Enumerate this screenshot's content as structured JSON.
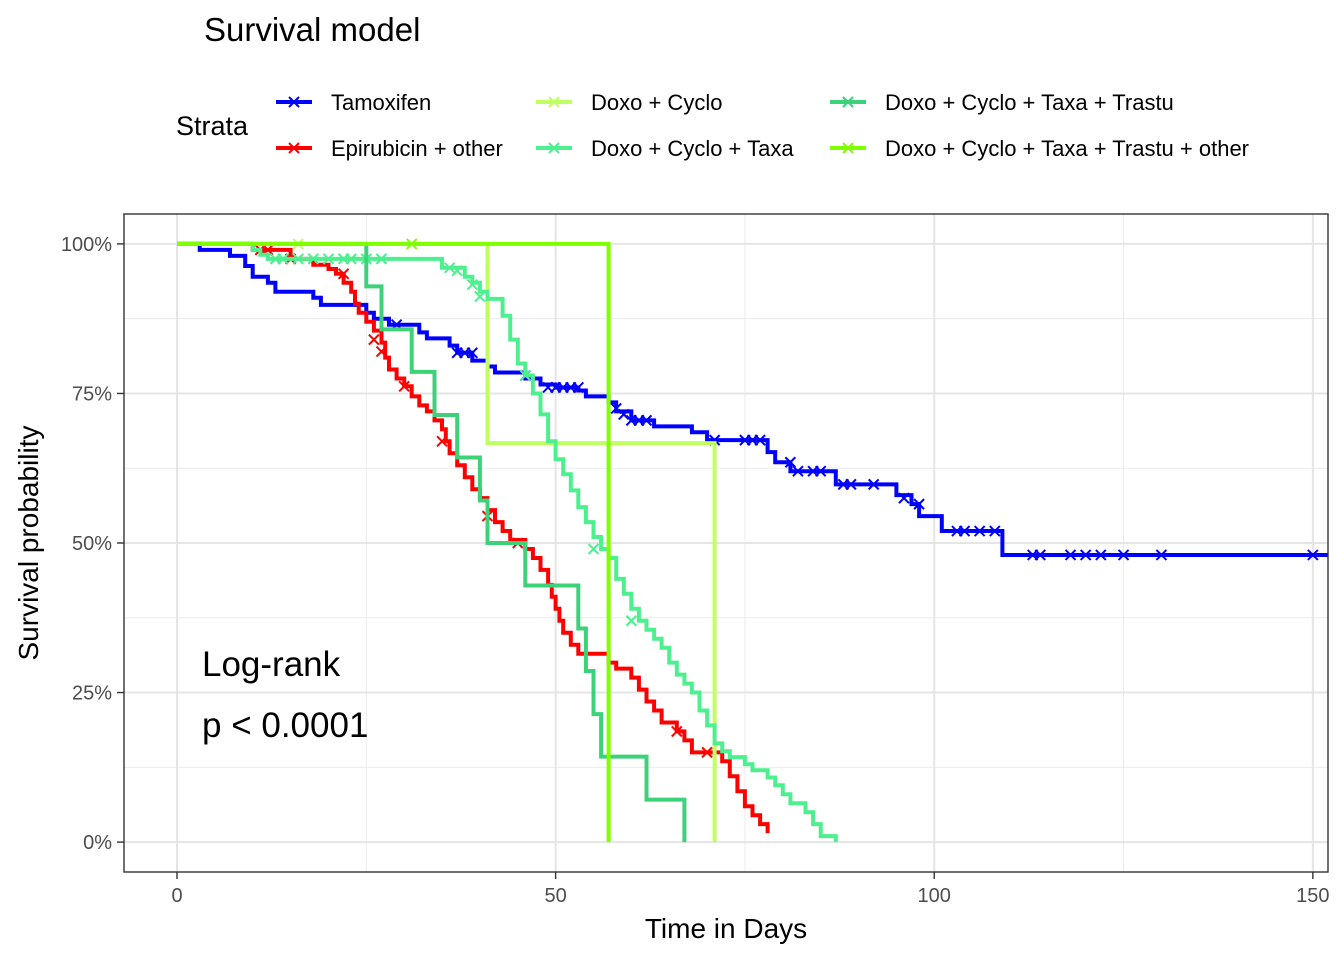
{
  "chart_data": {
    "type": "line",
    "title": "Survival model",
    "xlabel": "Time in Days",
    "ylabel": "Survival probability",
    "xlim": [
      -7,
      152
    ],
    "ylim": [
      -0.05,
      1.05
    ],
    "x_ticks": [
      0,
      50,
      100,
      150
    ],
    "x_tick_labels": [
      "0",
      "50",
      "100",
      "150"
    ],
    "y_ticks": [
      0,
      0.25,
      0.5,
      0.75,
      1.0
    ],
    "y_tick_labels": [
      "0%",
      "25%",
      "50%",
      "75%",
      "100%"
    ],
    "grid": true,
    "legend": {
      "title": "Strata",
      "placement": "top"
    },
    "annotation": {
      "line1": "Log-rank",
      "line2": "p < 0.0001"
    },
    "series": [
      {
        "name": "Tamoxifen",
        "color": "#0000ff",
        "steps": [
          [
            0,
            1.0
          ],
          [
            3,
            0.99
          ],
          [
            7,
            0.98
          ],
          [
            9,
            0.963
          ],
          [
            10,
            0.945
          ],
          [
            12,
            0.935
          ],
          [
            13,
            0.92
          ],
          [
            18,
            0.91
          ],
          [
            19,
            0.898
          ],
          [
            25,
            0.885
          ],
          [
            26,
            0.875
          ],
          [
            28,
            0.865
          ],
          [
            32,
            0.852
          ],
          [
            33,
            0.842
          ],
          [
            36,
            0.83
          ],
          [
            37,
            0.818
          ],
          [
            39,
            0.805
          ],
          [
            41,
            0.795
          ],
          [
            42,
            0.785
          ],
          [
            46,
            0.775
          ],
          [
            48,
            0.765
          ],
          [
            50,
            0.76
          ],
          [
            53,
            0.755
          ],
          [
            54,
            0.745
          ],
          [
            57,
            0.735
          ],
          [
            58,
            0.72
          ],
          [
            60,
            0.705
          ],
          [
            63,
            0.695
          ],
          [
            68,
            0.685
          ],
          [
            70,
            0.672
          ],
          [
            78,
            0.652
          ],
          [
            79,
            0.635
          ],
          [
            81,
            0.62
          ],
          [
            87,
            0.598
          ],
          [
            95,
            0.58
          ],
          [
            97,
            0.565
          ],
          [
            98,
            0.545
          ],
          [
            101,
            0.52
          ],
          [
            109,
            0.48
          ],
          [
            152,
            0.48
          ]
        ],
        "censors": [
          [
            29,
            0.865
          ],
          [
            37,
            0.818
          ],
          [
            38,
            0.818
          ],
          [
            39,
            0.818
          ],
          [
            46,
            0.78
          ],
          [
            49,
            0.76
          ],
          [
            50,
            0.76
          ],
          [
            51,
            0.76
          ],
          [
            52,
            0.76
          ],
          [
            53,
            0.76
          ],
          [
            58,
            0.725
          ],
          [
            59,
            0.715
          ],
          [
            60,
            0.705
          ],
          [
            61,
            0.705
          ],
          [
            62,
            0.705
          ],
          [
            71,
            0.672
          ],
          [
            75,
            0.672
          ],
          [
            76,
            0.672
          ],
          [
            77,
            0.672
          ],
          [
            81,
            0.635
          ],
          [
            82,
            0.62
          ],
          [
            84,
            0.62
          ],
          [
            85,
            0.62
          ],
          [
            88,
            0.598
          ],
          [
            89,
            0.598
          ],
          [
            92,
            0.598
          ],
          [
            96,
            0.575
          ],
          [
            98,
            0.565
          ],
          [
            103,
            0.52
          ],
          [
            104,
            0.52
          ],
          [
            106,
            0.52
          ],
          [
            108,
            0.52
          ],
          [
            113,
            0.48
          ],
          [
            114,
            0.48
          ],
          [
            118,
            0.48
          ],
          [
            120,
            0.48
          ],
          [
            122,
            0.48
          ],
          [
            125,
            0.48
          ],
          [
            130,
            0.48
          ],
          [
            150,
            0.48
          ]
        ]
      },
      {
        "name": "Epirubicin + other",
        "color": "#ff0000",
        "steps": [
          [
            0,
            1.0
          ],
          [
            10,
            0.99
          ],
          [
            15,
            0.975
          ],
          [
            18,
            0.965
          ],
          [
            20,
            0.958
          ],
          [
            21,
            0.95
          ],
          [
            22,
            0.935
          ],
          [
            23,
            0.92
          ],
          [
            23.5,
            0.9
          ],
          [
            24,
            0.885
          ],
          [
            25,
            0.87
          ],
          [
            26,
            0.855
          ],
          [
            27,
            0.835
          ],
          [
            27.5,
            0.81
          ],
          [
            28,
            0.79
          ],
          [
            29,
            0.775
          ],
          [
            30,
            0.762
          ],
          [
            31,
            0.745
          ],
          [
            32,
            0.73
          ],
          [
            33,
            0.72
          ],
          [
            34,
            0.705
          ],
          [
            35,
            0.69
          ],
          [
            35.5,
            0.67
          ],
          [
            36,
            0.65
          ],
          [
            37,
            0.63
          ],
          [
            38,
            0.61
          ],
          [
            39,
            0.59
          ],
          [
            40,
            0.575
          ],
          [
            41,
            0.555
          ],
          [
            42,
            0.535
          ],
          [
            43,
            0.52
          ],
          [
            44,
            0.505
          ],
          [
            46,
            0.49
          ],
          [
            47,
            0.475
          ],
          [
            48,
            0.455
          ],
          [
            49,
            0.43
          ],
          [
            49.5,
            0.41
          ],
          [
            50,
            0.39
          ],
          [
            50.5,
            0.37
          ],
          [
            51,
            0.35
          ],
          [
            52,
            0.33
          ],
          [
            53,
            0.315
          ],
          [
            55,
            0.315
          ],
          [
            57,
            0.3
          ],
          [
            58,
            0.29
          ],
          [
            60,
            0.275
          ],
          [
            61,
            0.255
          ],
          [
            62,
            0.235
          ],
          [
            63,
            0.22
          ],
          [
            64,
            0.2
          ],
          [
            66,
            0.185
          ],
          [
            67,
            0.17
          ],
          [
            68,
            0.15
          ],
          [
            70,
            0.15
          ],
          [
            72,
            0.135
          ],
          [
            73,
            0.11
          ],
          [
            74,
            0.085
          ],
          [
            75,
            0.06
          ],
          [
            76,
            0.045
          ],
          [
            77,
            0.03
          ],
          [
            78,
            0.015
          ]
        ],
        "censors": [
          [
            11,
            0.99
          ],
          [
            12,
            0.99
          ],
          [
            15,
            0.975
          ],
          [
            22,
            0.95
          ],
          [
            26,
            0.84
          ],
          [
            27,
            0.82
          ],
          [
            30,
            0.762
          ],
          [
            35,
            0.67
          ],
          [
            41,
            0.545
          ],
          [
            45,
            0.5
          ],
          [
            66,
            0.185
          ],
          [
            70,
            0.15
          ]
        ]
      },
      {
        "name": "Doxo + Cyclo",
        "color": "#c0ff60",
        "steps": [
          [
            0,
            1.0
          ],
          [
            41,
            0.667
          ],
          [
            71,
            0.667
          ],
          [
            71,
            0.0
          ]
        ],
        "censors": [
          [
            16,
            1.0
          ]
        ]
      },
      {
        "name": "Doxo + Cyclo + Taxa",
        "color": "#4cf08e",
        "steps": [
          [
            0,
            1.0
          ],
          [
            10,
            0.99
          ],
          [
            11,
            0.982
          ],
          [
            12,
            0.975
          ],
          [
            19,
            0.975
          ],
          [
            35,
            0.96
          ],
          [
            38,
            0.945
          ],
          [
            39,
            0.935
          ],
          [
            40,
            0.92
          ],
          [
            41,
            0.908
          ],
          [
            43,
            0.88
          ],
          [
            44,
            0.84
          ],
          [
            45,
            0.8
          ],
          [
            46,
            0.78
          ],
          [
            47,
            0.75
          ],
          [
            48,
            0.715
          ],
          [
            49,
            0.67
          ],
          [
            50,
            0.64
          ],
          [
            51,
            0.615
          ],
          [
            52,
            0.588
          ],
          [
            53,
            0.56
          ],
          [
            54,
            0.535
          ],
          [
            55,
            0.51
          ],
          [
            56,
            0.49
          ],
          [
            57,
            0.475
          ],
          [
            58,
            0.44
          ],
          [
            59,
            0.415
          ],
          [
            60,
            0.39
          ],
          [
            61,
            0.37
          ],
          [
            62,
            0.355
          ],
          [
            63,
            0.34
          ],
          [
            64,
            0.325
          ],
          [
            65,
            0.3
          ],
          [
            66,
            0.28
          ],
          [
            67,
            0.265
          ],
          [
            68,
            0.25
          ],
          [
            69,
            0.22
          ],
          [
            70,
            0.195
          ],
          [
            71,
            0.165
          ],
          [
            72,
            0.152
          ],
          [
            73,
            0.142
          ],
          [
            75,
            0.13
          ],
          [
            76,
            0.12
          ],
          [
            78,
            0.108
          ],
          [
            79,
            0.095
          ],
          [
            80,
            0.08
          ],
          [
            81,
            0.065
          ],
          [
            83,
            0.05
          ],
          [
            84,
            0.03
          ],
          [
            85,
            0.01
          ],
          [
            87,
            0.0
          ]
        ],
        "censors": [
          [
            13,
            0.975
          ],
          [
            14,
            0.975
          ],
          [
            16,
            0.975
          ],
          [
            18,
            0.975
          ],
          [
            20,
            0.975
          ],
          [
            22,
            0.975
          ],
          [
            23,
            0.975
          ],
          [
            25,
            0.975
          ],
          [
            27,
            0.975
          ],
          [
            36,
            0.96
          ],
          [
            37,
            0.955
          ],
          [
            39,
            0.932
          ],
          [
            40,
            0.912
          ],
          [
            46,
            0.78
          ],
          [
            55,
            0.49
          ],
          [
            60,
            0.37
          ]
        ]
      },
      {
        "name": "Doxo + Cyclo + Taxa + Trastu",
        "color": "#3dd17a",
        "steps": [
          [
            0,
            1.0
          ],
          [
            25,
            0.929
          ],
          [
            27,
            0.857
          ],
          [
            31,
            0.786
          ],
          [
            34,
            0.714
          ],
          [
            37,
            0.643
          ],
          [
            40,
            0.571
          ],
          [
            41,
            0.5
          ],
          [
            46,
            0.429
          ],
          [
            53,
            0.357
          ],
          [
            54,
            0.286
          ],
          [
            55,
            0.214
          ],
          [
            56,
            0.143
          ],
          [
            62,
            0.071
          ],
          [
            67,
            0.0
          ]
        ],
        "censors": []
      },
      {
        "name": "Doxo + Cyclo + Taxa + Trastu + other",
        "color": "#80ff00",
        "steps": [
          [
            0,
            1.0
          ],
          [
            57,
            1.0
          ],
          [
            57,
            0.0
          ]
        ],
        "censors": [
          [
            31,
            1.0
          ]
        ]
      }
    ]
  }
}
